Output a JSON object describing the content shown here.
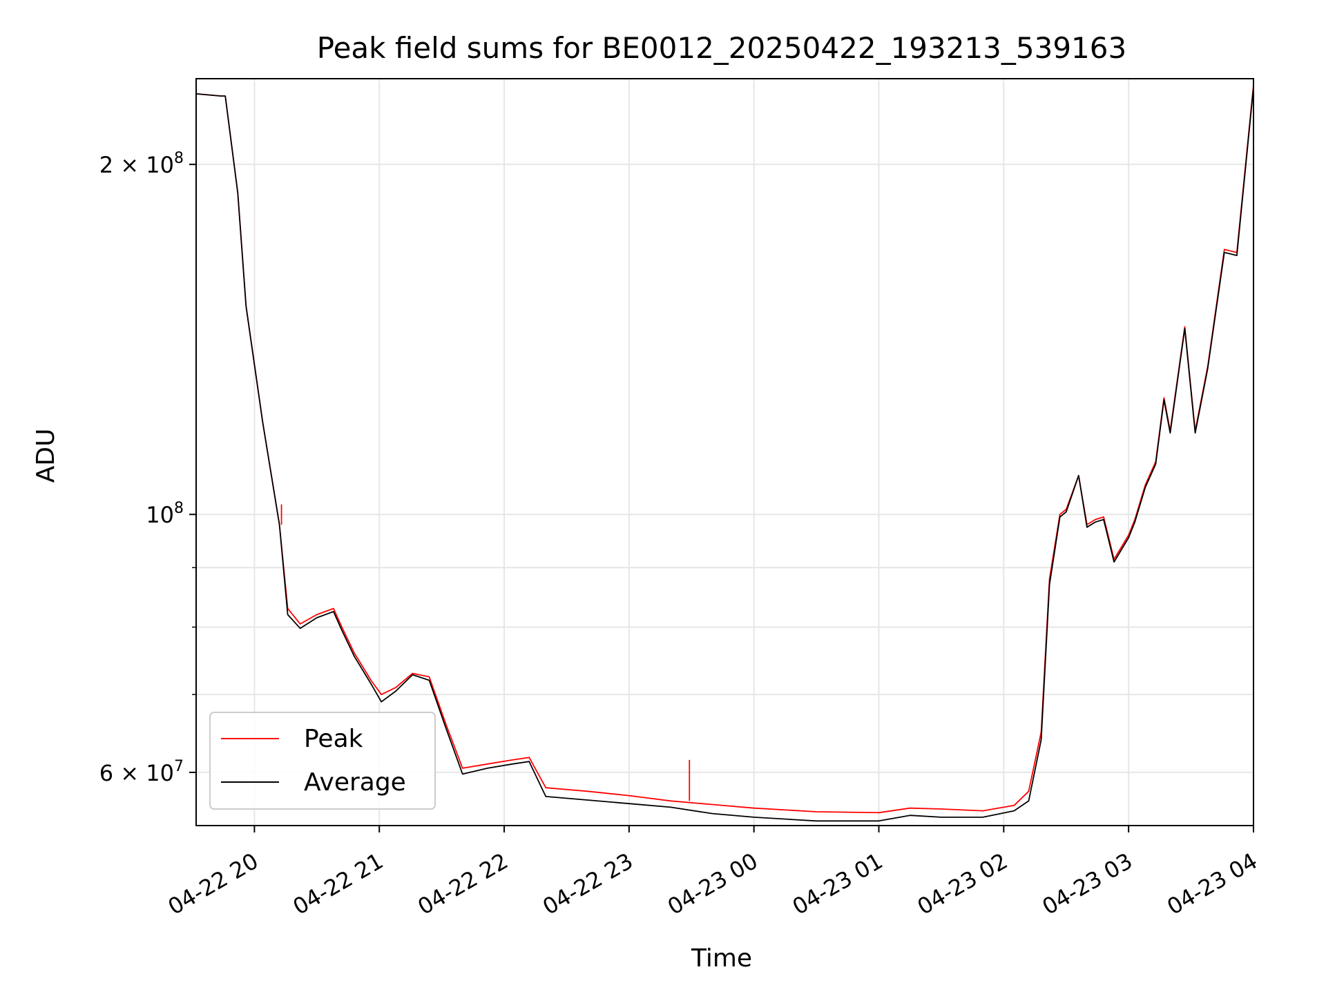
{
  "chart_data": {
    "type": "line",
    "title": "Peak field sums for BE0012_20250422_193213_539163",
    "xlabel": "Time",
    "ylabel": "ADU",
    "yscale": "log",
    "ylim": [
      54000000,
      237000000
    ],
    "xlim": [
      "2025-04-22 19:32",
      "2025-04-23 04:00"
    ],
    "grid": true,
    "legend_position": "lower-left",
    "x_ticks": [
      {
        "t": "2025-04-22 20:00",
        "label": "04-22 20"
      },
      {
        "t": "2025-04-22 21:00",
        "label": "04-22 21"
      },
      {
        "t": "2025-04-22 22:00",
        "label": "04-22 22"
      },
      {
        "t": "2025-04-22 23:00",
        "label": "04-22 23"
      },
      {
        "t": "2025-04-23 00:00",
        "label": "04-23 00"
      },
      {
        "t": "2025-04-23 01:00",
        "label": "04-23 01"
      },
      {
        "t": "2025-04-23 02:00",
        "label": "04-23 02"
      },
      {
        "t": "2025-04-23 03:00",
        "label": "04-23 03"
      },
      {
        "t": "2025-04-23 04:00",
        "label": "04-23 04"
      }
    ],
    "y_major_ticks": [
      {
        "value": 60000000,
        "mant": "6",
        "exp": "7"
      },
      {
        "value": 100000000,
        "mant": "",
        "exp": "8"
      },
      {
        "value": 200000000,
        "mant": "2",
        "exp": "8"
      }
    ],
    "y_minor_ticks": [
      70000000,
      80000000,
      90000000
    ],
    "x": [
      "2025-04-22 19:32",
      "2025-04-22 19:44",
      "2025-04-22 19:46",
      "2025-04-22 19:52",
      "2025-04-22 19:56",
      "2025-04-22 20:04",
      "2025-04-22 20:12",
      "2025-04-22 20:16",
      "2025-04-22 20:22",
      "2025-04-22 20:30",
      "2025-04-22 20:38",
      "2025-04-22 20:42",
      "2025-04-22 20:48",
      "2025-04-22 20:56",
      "2025-04-22 21:01",
      "2025-04-22 21:08",
      "2025-04-22 21:16",
      "2025-04-22 21:24",
      "2025-04-22 21:32",
      "2025-04-22 21:40",
      "2025-04-22 21:52",
      "2025-04-22 22:04",
      "2025-04-22 22:12",
      "2025-04-22 22:20",
      "2025-04-22 22:40",
      "2025-04-22 23:00",
      "2025-04-22 23:20",
      "2025-04-22 23:40",
      "2025-04-23 00:00",
      "2025-04-23 00:30",
      "2025-04-23 01:00",
      "2025-04-23 01:15",
      "2025-04-23 01:30",
      "2025-04-23 01:50",
      "2025-04-23 02:05",
      "2025-04-23 02:12",
      "2025-04-23 02:18",
      "2025-04-23 02:22",
      "2025-04-23 02:27",
      "2025-04-23 02:30",
      "2025-04-23 02:36",
      "2025-04-23 02:40",
      "2025-04-23 02:44",
      "2025-04-23 02:48",
      "2025-04-23 02:53",
      "2025-04-23 03:00",
      "2025-04-23 03:03",
      "2025-04-23 03:08",
      "2025-04-23 03:13",
      "2025-04-23 03:17",
      "2025-04-23 03:20",
      "2025-04-23 03:27",
      "2025-04-23 03:32",
      "2025-04-23 03:38",
      "2025-04-23 03:46",
      "2025-04-23 03:52",
      "2025-04-23 04:00"
    ],
    "series": [
      {
        "name": "Peak",
        "color": "#ff0000",
        "values": [
          230000000,
          229000000,
          229000000,
          189000000,
          151000000,
          120000000,
          98000000,
          83000000,
          80500000,
          82000000,
          83000000,
          80000000,
          76000000,
          72000000,
          70000000,
          71000000,
          73000000,
          72500000,
          66000000,
          60500000,
          61000000,
          61500000,
          61800000,
          58200000,
          57800000,
          57300000,
          56700000,
          56300000,
          55900000,
          55500000,
          55400000,
          55900000,
          55800000,
          55600000,
          56200000,
          57800000,
          65000000,
          88000000,
          100000000,
          101000000,
          108000000,
          98000000,
          99000000,
          99500000,
          91500000,
          96000000,
          99000000,
          106000000,
          111000000,
          126000000,
          118000000,
          145000000,
          118000000,
          134000000,
          169000000,
          168000000,
          234000000
        ]
      },
      {
        "name": "Average",
        "color": "#000000",
        "values": [
          230000000,
          229000000,
          229000000,
          189000000,
          151000000,
          120000000,
          98000000,
          82000000,
          79800000,
          81500000,
          82500000,
          79500000,
          75500000,
          71500000,
          69000000,
          70500000,
          72800000,
          72000000,
          65500000,
          59800000,
          60500000,
          61000000,
          61300000,
          57200000,
          56800000,
          56400000,
          56000000,
          55300000,
          54900000,
          54500000,
          54500000,
          55100000,
          54900000,
          54900000,
          55600000,
          56700000,
          64000000,
          87000000,
          99500000,
          100500000,
          108000000,
          97500000,
          98500000,
          99000000,
          91000000,
          95500000,
          98500000,
          105500000,
          110500000,
          125500000,
          117500000,
          144500000,
          117500000,
          133500000,
          168000000,
          167000000,
          233000000
        ]
      }
    ],
    "annotations": [
      {
        "series": "Peak",
        "x": "2025-04-22 20:13",
        "value": 102000000
      },
      {
        "series": "Peak",
        "x": "2025-04-22 23:29",
        "value": 61500000
      }
    ]
  }
}
